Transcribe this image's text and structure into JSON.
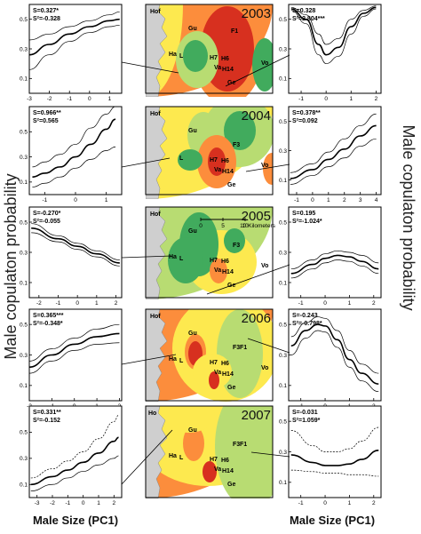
{
  "figure": {
    "ylabel_left": "Male copulaton probability",
    "ylabel_right": "Male copulaton probability",
    "xlabel_left": "Male Size (PC1)",
    "xlabel_right": "Male Size (PC1)"
  },
  "maps": [
    {
      "year": "2003",
      "sites": [
        "Hof",
        "Gu",
        "F1",
        "H7",
        "H6",
        "Va",
        "H14",
        "Ge",
        "Vo",
        "Ha",
        "L"
      ],
      "scale_label": ""
    },
    {
      "year": "2004",
      "sites": [
        "Hof",
        "Gu",
        "F3",
        "L",
        "H7",
        "H6",
        "Va",
        "H14",
        "Ge",
        "Vo"
      ],
      "scale_label": ""
    },
    {
      "year": "2005",
      "sites": [
        "Hof",
        "Gu",
        "F3",
        "Ha",
        "L",
        "H7",
        "H6",
        "Va",
        "H14",
        "Ge",
        "Vo"
      ],
      "scale_label": "10 Kilometers",
      "scale_ticks": [
        "0",
        "5",
        "10"
      ]
    },
    {
      "year": "2006",
      "sites": [
        "Hof",
        "Gu",
        "F3",
        "F1",
        "Ha",
        "L",
        "H7",
        "H6",
        "Va",
        "H14",
        "Ge",
        "Vo"
      ],
      "scale_label": ""
    },
    {
      "year": "2007",
      "sites": [
        "Ho",
        "Gu",
        "F3",
        "F1",
        "Ha",
        "L",
        "H7",
        "H6",
        "Va",
        "H14",
        "Ge"
      ],
      "scale_label": ""
    }
  ],
  "chart_data": [
    {
      "type": "line",
      "panel": "2003-left",
      "xlabel": "Male Size (PC1)",
      "ylabel": "Male copulaton probability",
      "xlim": [
        -3,
        1.6
      ],
      "ylim": [
        0,
        0.6
      ],
      "xticks": [
        -3,
        -2,
        -1,
        0,
        1
      ],
      "yticks": [
        0.1,
        0.3,
        0.5
      ],
      "stat_s": "S=0.327*",
      "stat_s2": "S²=-0.328",
      "series": [
        {
          "x": [
            -3,
            -2,
            -1,
            0,
            1,
            1.5
          ],
          "values": [
            0.26,
            0.33,
            0.4,
            0.45,
            0.49,
            0.5
          ]
        },
        {
          "x": [
            -3,
            -2,
            -1,
            0,
            1,
            1.5
          ],
          "values": [
            0.16,
            0.26,
            0.35,
            0.41,
            0.45,
            0.46
          ]
        },
        {
          "x": [
            -3,
            -2,
            -1,
            0,
            1,
            1.5
          ],
          "values": [
            0.36,
            0.4,
            0.45,
            0.49,
            0.53,
            0.55
          ]
        }
      ]
    },
    {
      "type": "line",
      "panel": "2003-right",
      "xlabel": "Male Size (PC1)",
      "ylabel": "Male copulaton probability",
      "xlim": [
        -1.5,
        2.2
      ],
      "ylim": [
        0,
        0.6
      ],
      "xticks": [
        -1,
        0,
        1,
        2
      ],
      "yticks": [
        0.1,
        0.3,
        0.5
      ],
      "stat_s": "S=0.328",
      "stat_s2": "S²=2.804***",
      "series": [
        {
          "x": [
            -1.4,
            -0.8,
            -0.3,
            0,
            0.5,
            1,
            1.5,
            2
          ],
          "values": [
            0.57,
            0.5,
            0.33,
            0.26,
            0.31,
            0.45,
            0.54,
            0.58
          ]
        },
        {
          "x": [
            -1.4,
            -0.8,
            -0.3,
            0,
            0.5,
            1,
            1.5,
            2
          ],
          "values": [
            0.56,
            0.47,
            0.26,
            0.2,
            0.25,
            0.4,
            0.52,
            0.57
          ]
        },
        {
          "x": [
            -1.4,
            -0.8,
            -0.3,
            0,
            0.5,
            1,
            1.5,
            2
          ],
          "values": [
            0.58,
            0.53,
            0.4,
            0.33,
            0.37,
            0.5,
            0.56,
            0.59
          ]
        }
      ]
    },
    {
      "type": "line",
      "panel": "2004-left",
      "xlabel": "Male Size (PC1)",
      "ylabel": "Male copulaton probability",
      "xlim": [
        -1.5,
        1.5
      ],
      "ylim": [
        0,
        0.7
      ],
      "xticks": [
        -1,
        0,
        1
      ],
      "yticks": [
        0.1,
        0.3,
        0.5
      ],
      "stat_s": "S=0.966**",
      "stat_s2": "S²=0.565",
      "series": [
        {
          "x": [
            -1.4,
            -1,
            -0.5,
            0,
            0.5,
            1,
            1.3
          ],
          "values": [
            0.14,
            0.17,
            0.22,
            0.3,
            0.4,
            0.52,
            0.6
          ]
        },
        {
          "x": [
            -1.4,
            -1,
            -0.5,
            0,
            0.5,
            1,
            1.3
          ],
          "values": [
            0.06,
            0.09,
            0.14,
            0.21,
            0.28,
            0.35,
            0.38
          ]
        },
        {
          "x": [
            -1.4,
            -1,
            -0.5,
            0,
            0.5,
            1,
            1.3
          ],
          "values": [
            0.22,
            0.26,
            0.32,
            0.4,
            0.53,
            0.64,
            0.7
          ]
        }
      ]
    },
    {
      "type": "line",
      "panel": "2004-right",
      "xlabel": "Male Size (PC1)",
      "ylabel": "Male copulaton probability",
      "xlim": [
        -1.5,
        4.3
      ],
      "ylim": [
        0,
        0.6
      ],
      "xticks": [
        -1,
        0,
        1,
        2,
        3,
        4
      ],
      "yticks": [
        0.1,
        0.3,
        0.5
      ],
      "stat_s": "S=0.378**",
      "stat_s2": "S²=0.092",
      "series": [
        {
          "x": [
            -1.4,
            0,
            1,
            2,
            3,
            4
          ],
          "values": [
            0.11,
            0.17,
            0.24,
            0.31,
            0.4,
            0.47
          ]
        },
        {
          "x": [
            -1.4,
            0,
            1,
            2,
            3,
            4
          ],
          "values": [
            0.07,
            0.13,
            0.19,
            0.25,
            0.33,
            0.38
          ]
        },
        {
          "x": [
            -1.4,
            0,
            1,
            2,
            3,
            4
          ],
          "values": [
            0.15,
            0.21,
            0.29,
            0.38,
            0.47,
            0.55
          ]
        }
      ]
    },
    {
      "type": "line",
      "panel": "2005-left",
      "xlabel": "Male Size (PC1)",
      "ylabel": "Male copulaton probability",
      "xlim": [
        -2.5,
        2.3
      ],
      "ylim": [
        0,
        0.6
      ],
      "xticks": [
        -2,
        -1,
        0,
        1,
        2
      ],
      "yticks": [
        0.1,
        0.3,
        0.5
      ],
      "stat_s": "S=-0.270*",
      "stat_s2": "S²=-0.055",
      "series": [
        {
          "x": [
            -2.4,
            -1,
            0,
            1,
            2.2
          ],
          "values": [
            0.46,
            0.39,
            0.34,
            0.29,
            0.23
          ]
        },
        {
          "x": [
            -2.4,
            -1,
            0,
            1,
            2.2
          ],
          "values": [
            0.43,
            0.37,
            0.32,
            0.27,
            0.21
          ]
        },
        {
          "x": [
            -2.4,
            -1,
            0,
            1,
            2.2
          ],
          "values": [
            0.49,
            0.41,
            0.36,
            0.31,
            0.25
          ]
        }
      ]
    },
    {
      "type": "line",
      "panel": "2005-right",
      "xlabel": "Male Size (PC1)",
      "ylabel": "Male copulaton probability",
      "xlim": [
        -1.5,
        2.3
      ],
      "ylim": [
        0,
        0.6
      ],
      "xticks": [
        -1,
        0,
        1,
        2
      ],
      "yticks": [
        0.1,
        0.3,
        0.5
      ],
      "stat_s": "S=0.195",
      "stat_s2": "S²=-1.024*",
      "series": [
        {
          "x": [
            -1.4,
            -0.5,
            0,
            0.5,
            1,
            1.5,
            2.2
          ],
          "values": [
            0.16,
            0.22,
            0.26,
            0.28,
            0.27,
            0.24,
            0.19
          ]
        },
        {
          "x": [
            -1.4,
            -0.5,
            0,
            0.5,
            1,
            1.5,
            2.2
          ],
          "values": [
            0.13,
            0.19,
            0.23,
            0.25,
            0.24,
            0.21,
            0.16
          ]
        },
        {
          "x": [
            -1.4,
            -0.5,
            0,
            0.5,
            1,
            1.5,
            2.2
          ],
          "values": [
            0.19,
            0.25,
            0.29,
            0.31,
            0.3,
            0.28,
            0.23
          ]
        }
      ]
    },
    {
      "type": "line",
      "panel": "2006-left",
      "xlabel": "Male Size (PC1)",
      "ylabel": "Male copulaton probability",
      "xlim": [
        -2,
        2.1
      ],
      "ylim": [
        0,
        0.6
      ],
      "xticks": [
        -2,
        -1,
        0,
        1,
        2
      ],
      "yticks": [
        0.1,
        0.3,
        0.5
      ],
      "stat_s": "S=0.365***",
      "stat_s2": "S²=-0.348*",
      "series": [
        {
          "x": [
            -2,
            -1,
            0,
            1,
            2
          ],
          "values": [
            0.22,
            0.3,
            0.37,
            0.42,
            0.44
          ]
        },
        {
          "x": [
            -2,
            -1,
            0,
            1,
            2
          ],
          "values": [
            0.18,
            0.26,
            0.33,
            0.37,
            0.38
          ]
        },
        {
          "x": [
            -2,
            -1,
            0,
            1,
            2
          ],
          "values": [
            0.26,
            0.34,
            0.41,
            0.47,
            0.5
          ]
        }
      ]
    },
    {
      "type": "line",
      "panel": "2006-right",
      "xlabel": "Male Size (PC1)",
      "ylabel": "Male copulaton probability",
      "xlim": [
        -1.5,
        2.3
      ],
      "ylim": [
        0,
        0.6
      ],
      "xticks": [
        -1,
        0,
        1,
        2
      ],
      "yticks": [
        0.1,
        0.3,
        0.5
      ],
      "stat_s": "S=-0.243",
      "stat_s2": "S²=-0.798*",
      "series": [
        {
          "x": [
            -1.4,
            -0.8,
            -0.3,
            0,
            0.5,
            1,
            1.5,
            2.2
          ],
          "values": [
            0.36,
            0.46,
            0.5,
            0.49,
            0.4,
            0.27,
            0.18,
            0.11
          ]
        },
        {
          "x": [
            -1.4,
            -0.8,
            -0.3,
            0,
            0.5,
            1,
            1.5,
            2.2
          ],
          "values": [
            0.3,
            0.41,
            0.46,
            0.45,
            0.35,
            0.22,
            0.13,
            0.06
          ]
        },
        {
          "x": [
            -1.4,
            -0.8,
            -0.3,
            0,
            0.5,
            1,
            1.5,
            2.2
          ],
          "values": [
            0.42,
            0.51,
            0.55,
            0.54,
            0.46,
            0.33,
            0.24,
            0.18
          ]
        }
      ]
    },
    {
      "type": "line",
      "panel": "2007-left",
      "xlabel": "Male Size (PC1)",
      "ylabel": "Male copulaton probability",
      "xlim": [
        -3.5,
        2.5
      ],
      "ylim": [
        0,
        0.7
      ],
      "xticks": [
        -3,
        -2,
        -1,
        0,
        1,
        2
      ],
      "yticks": [
        0.1,
        0.3,
        0.5
      ],
      "stat_s": "S=0.331**",
      "stat_s2": "S²=-0.152",
      "series": [
        {
          "x": [
            -3.4,
            -2,
            -1,
            0,
            1,
            2,
            2.3
          ],
          "values": [
            0.1,
            0.16,
            0.21,
            0.27,
            0.34,
            0.43,
            0.46
          ]
        },
        {
          "x": [
            -3.4,
            -2,
            -1,
            0,
            1,
            2,
            2.3
          ],
          "values": [
            0.05,
            0.1,
            0.15,
            0.2,
            0.25,
            0.3,
            0.32
          ]
        },
        {
          "x": [
            -3.4,
            -2,
            -1,
            0,
            1,
            2,
            2.3
          ],
          "values": [
            0.15,
            0.22,
            0.28,
            0.35,
            0.45,
            0.58,
            0.63
          ]
        }
      ]
    },
    {
      "type": "line",
      "panel": "2007-right",
      "xlabel": "Male Size (PC1)",
      "ylabel": "Male copulaton probability",
      "xlim": [
        -1.5,
        2.3
      ],
      "ylim": [
        0,
        0.6
      ],
      "xticks": [
        -1,
        0,
        1,
        2
      ],
      "yticks": [
        0.1,
        0.3,
        0.5
      ],
      "stat_s": "S=-0.031",
      "stat_s2": "S²=1.059*",
      "series": [
        {
          "x": [
            -1.4,
            -0.5,
            0,
            0.5,
            1,
            1.5,
            2.2
          ],
          "values": [
            0.28,
            0.23,
            0.21,
            0.21,
            0.22,
            0.25,
            0.31
          ]
        },
        {
          "x": [
            -1.4,
            -0.5,
            0,
            0.5,
            1,
            1.5,
            2.2
          ],
          "values": [
            0.18,
            0.17,
            0.16,
            0.16,
            0.15,
            0.15,
            0.14
          ]
        },
        {
          "x": [
            -1.4,
            -0.5,
            0,
            0.5,
            1,
            1.5,
            2.2
          ],
          "values": [
            0.44,
            0.34,
            0.3,
            0.3,
            0.32,
            0.37,
            0.46
          ]
        }
      ]
    }
  ],
  "colors": {
    "line": "#000000",
    "frame": "#000000",
    "map_red": "#d7301f",
    "map_orange": "#fc8d3c",
    "map_yellow": "#fde94f",
    "map_green": "#41ab5d",
    "map_lightgreen": "#b8dc72"
  }
}
